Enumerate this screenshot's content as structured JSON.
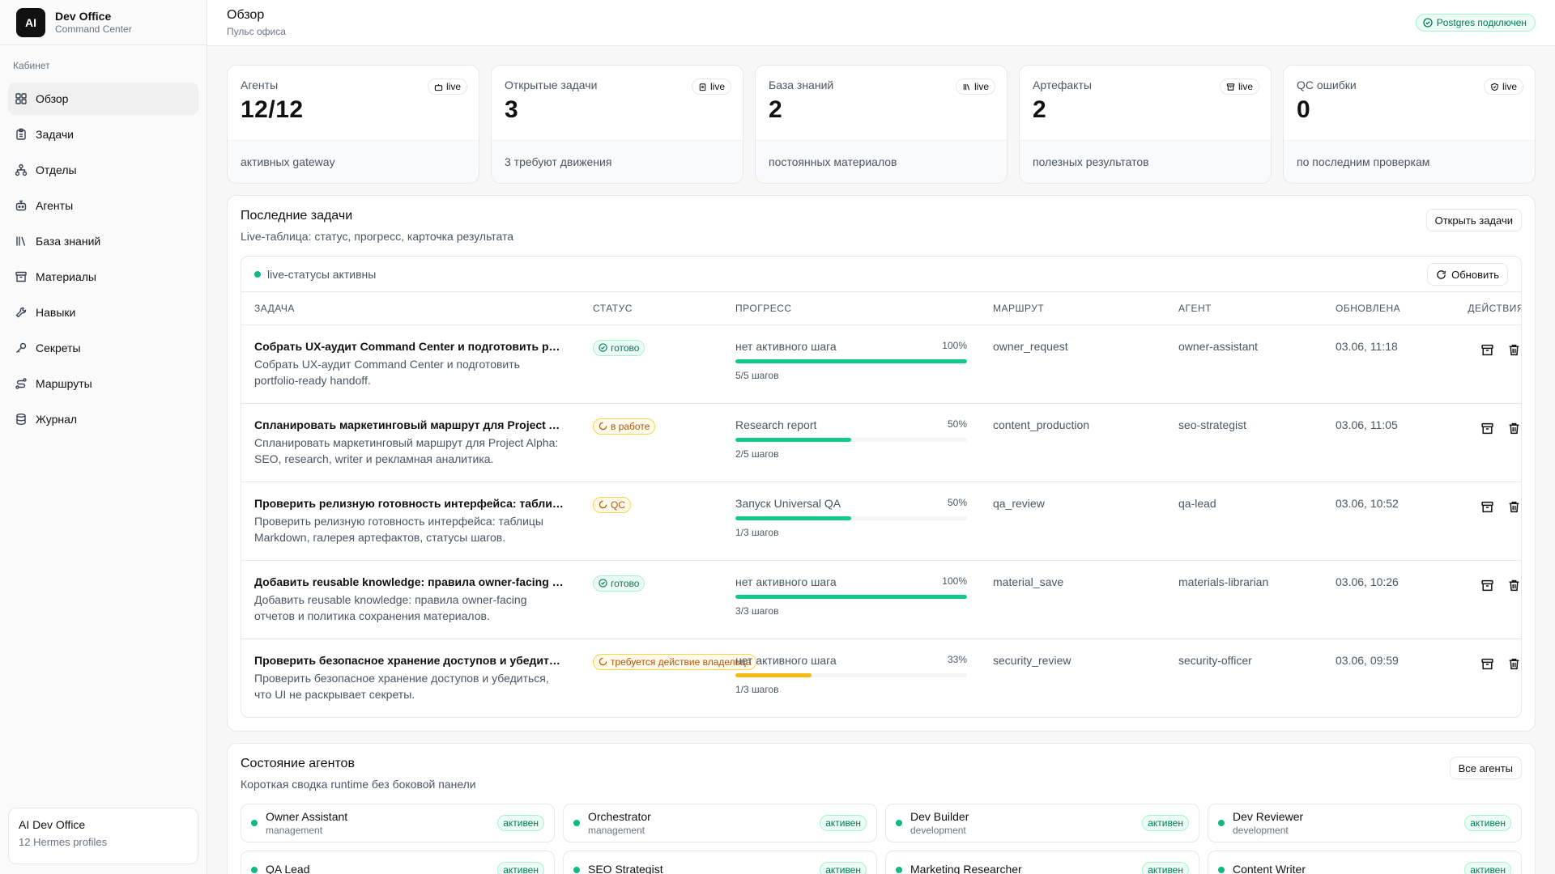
{
  "brand": {
    "logo": "AI",
    "title": "Dev Office",
    "subtitle": "Command Center"
  },
  "sidebar": {
    "section": "Кабинет",
    "items": [
      {
        "label": "Обзор",
        "icon": "grid-icon"
      },
      {
        "label": "Задачи",
        "icon": "clipboard-icon"
      },
      {
        "label": "Отделы",
        "icon": "org-chart-icon"
      },
      {
        "label": "Агенты",
        "icon": "bot-icon"
      },
      {
        "label": "База знаний",
        "icon": "library-icon"
      },
      {
        "label": "Материалы",
        "icon": "archive-icon"
      },
      {
        "label": "Навыки",
        "icon": "wrench-icon"
      },
      {
        "label": "Секреты",
        "icon": "key-icon"
      },
      {
        "label": "Маршруты",
        "icon": "route-icon"
      },
      {
        "label": "Журнал",
        "icon": "database-icon"
      }
    ],
    "footer": {
      "title": "AI Dev Office",
      "subtitle": "12 Hermes profiles"
    }
  },
  "header": {
    "title": "Обзор",
    "subtitle": "Пульс офиса",
    "db_status": "Postgres подключен"
  },
  "stats": [
    {
      "label": "Агенты",
      "value": "12/12",
      "live": "live",
      "note": "активных gateway"
    },
    {
      "label": "Открытые задачи",
      "value": "3",
      "live": "live",
      "note": "3 требуют движения"
    },
    {
      "label": "База знаний",
      "value": "2",
      "live": "live",
      "note": "постоянных материалов"
    },
    {
      "label": "Артефакты",
      "value": "2",
      "live": "live",
      "note": "полезных результатов"
    },
    {
      "label": "QC ошибки",
      "value": "0",
      "live": "live",
      "note": "по последним проверкам"
    }
  ],
  "tasks_panel": {
    "title": "Последние задачи",
    "subtitle": "Live-таблица: статус, прогресс, карточка результата",
    "open_button": "Открыть задачи",
    "live_status": "live-статусы активны",
    "refresh_button": "Обновить",
    "columns": [
      "ЗАДАЧА",
      "СТАТУС",
      "ПРОГРЕСС",
      "МАРШРУТ",
      "АГЕНТ",
      "ОБНОВЛЕНА",
      "ДЕЙСТВИЯ"
    ],
    "rows": [
      {
        "title": "Собрать UX-аудит Command Center и подготовить portfolio-ready handoff",
        "desc": "Собрать UX-аудит Command Center и подготовить portfolio-ready handoff.",
        "status": "готово",
        "status_kind": "green",
        "step": "нет активного шага",
        "percent": "100%",
        "progress": 1.0,
        "bar_color": "#10c98a",
        "steps": "5/5 шагов",
        "route": "owner_request",
        "agent": "owner-assistant",
        "updated": "03.06, 11:18"
      },
      {
        "title": "Спланировать маркетинговый маршрут для Project Alpha: SEO, research, writer и рекламная аналитика",
        "desc": "Спланировать маркетинговый маршрут для Project Alpha: SEO, research, writer и рекламная аналитика.",
        "status": "в работе",
        "status_kind": "amber",
        "step": "Research report",
        "percent": "50%",
        "progress": 0.5,
        "bar_color": "#10c98a",
        "steps": "2/5 шагов",
        "route": "content_production",
        "agent": "seo-strategist",
        "updated": "03.06, 11:05"
      },
      {
        "title": "Проверить релизную готовность интерфейса: таблицы Markdown, галерея артефактов, статусы шагов",
        "desc": "Проверить релизную готовность интерфейса: таблицы Markdown, галерея артефактов, статусы шагов.",
        "status": "QC",
        "status_kind": "amber",
        "step": "Запуск Universal QA",
        "percent": "50%",
        "progress": 0.5,
        "bar_color": "#10c98a",
        "steps": "1/3 шагов",
        "route": "qa_review",
        "agent": "qa-lead",
        "updated": "03.06, 10:52"
      },
      {
        "title": "Добавить reusable knowledge: правила owner-facing отчетов и политика сохранения материалов",
        "desc": "Добавить reusable knowledge: правила owner-facing отчетов и политика сохранения материалов.",
        "status": "готово",
        "status_kind": "green",
        "step": "нет активного шага",
        "percent": "100%",
        "progress": 1.0,
        "bar_color": "#10c98a",
        "steps": "3/3 шагов",
        "route": "material_save",
        "agent": "materials-librarian",
        "updated": "03.06, 10:26"
      },
      {
        "title": "Проверить безопасное хранение доступов и убедиться, что UI не раскрывает секреты",
        "desc": "Проверить безопасное хранение доступов и убедиться, что UI не раскрывает секреты.",
        "status": "требуется действие владельца",
        "status_kind": "amber",
        "step": "нет активного шага",
        "percent": "33%",
        "progress": 0.33,
        "bar_color": "#f5b90f",
        "steps": "1/3 шагов",
        "route": "security_review",
        "agent": "security-officer",
        "updated": "03.06, 09:59"
      }
    ]
  },
  "agents_panel": {
    "title": "Состояние агентов",
    "subtitle": "Короткая сводка runtime без боковой панели",
    "all_button": "Все агенты",
    "agents": [
      {
        "name": "Owner Assistant",
        "role": "management",
        "status": "активен"
      },
      {
        "name": "Orchestrator",
        "role": "management",
        "status": "активен"
      },
      {
        "name": "Dev Builder",
        "role": "development",
        "status": "активен"
      },
      {
        "name": "Dev Reviewer",
        "role": "development",
        "status": "активен"
      },
      {
        "name": "QA Lead",
        "role": "",
        "status": "активен"
      },
      {
        "name": "SEO Strategist",
        "role": "",
        "status": "активен"
      },
      {
        "name": "Marketing Researcher",
        "role": "",
        "status": "активен"
      },
      {
        "name": "Content Writer",
        "role": "",
        "status": "активен"
      }
    ]
  }
}
